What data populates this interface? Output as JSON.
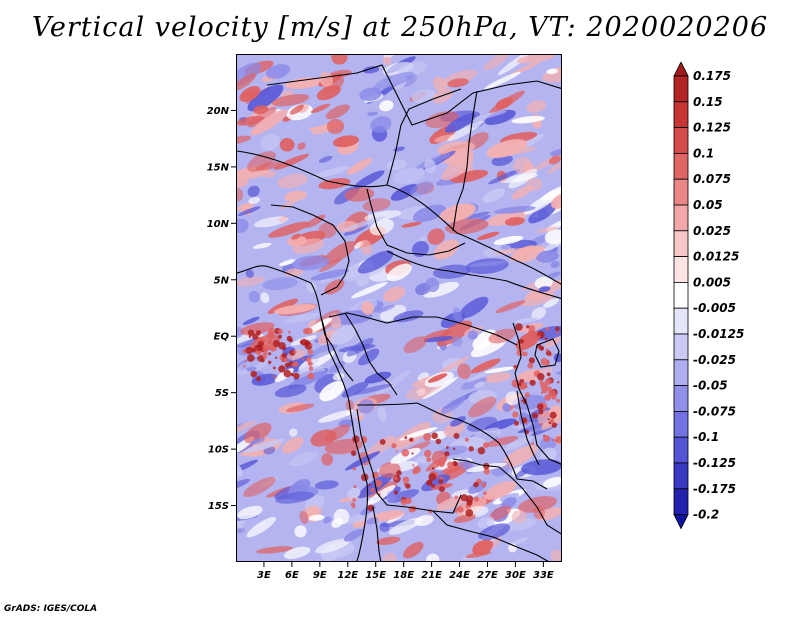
{
  "title": "Vertical velocity [m/s] at 250hPa, VT: 2020020206",
  "footer": "GrADS: IGES/COLA",
  "map": {
    "lat_range": [
      -20,
      25
    ],
    "lon_range": [
      0,
      35
    ],
    "lat_ticks": [
      "20N",
      "15N",
      "10N",
      "5N",
      "EQ",
      "5S",
      "10S",
      "15S"
    ],
    "lat_tick_values": [
      20,
      15,
      10,
      5,
      0,
      -5,
      -10,
      -15
    ],
    "lon_ticks": [
      "3E",
      "6E",
      "9E",
      "12E",
      "15E",
      "18E",
      "21E",
      "24E",
      "27E",
      "30E",
      "33E"
    ],
    "lon_tick_values": [
      3,
      6,
      9,
      12,
      15,
      18,
      21,
      24,
      27,
      30,
      33
    ]
  },
  "colorbar": {
    "labels": [
      "0.175",
      "0.15",
      "0.125",
      "0.1",
      "0.075",
      "0.05",
      "0.025",
      "0.0125",
      "0.005",
      "-0.005",
      "-0.0125",
      "-0.025",
      "-0.05",
      "-0.075",
      "-0.1",
      "-0.125",
      "-0.175",
      "-0.2"
    ],
    "colors": [
      "#a31a1a",
      "#b52424",
      "#c63434",
      "#d54a4a",
      "#e06666",
      "#ea8686",
      "#f2a8a8",
      "#f8c8c8",
      "#fce4e4",
      "#ffffff",
      "#e6e6fb",
      "#cacaf5",
      "#aeaef0",
      "#9090ea",
      "#7272e2",
      "#5454d6",
      "#3939c4",
      "#2222ae",
      "#1212a0"
    ]
  },
  "colors": {
    "strong_red": "#b02020",
    "red": "#e06060",
    "light_red": "#f4b0b0",
    "white": "#ffffff",
    "light_blue": "#c8c8f4",
    "blue": "#8a8ae8",
    "deep_blue": "#5a5ad8"
  }
}
